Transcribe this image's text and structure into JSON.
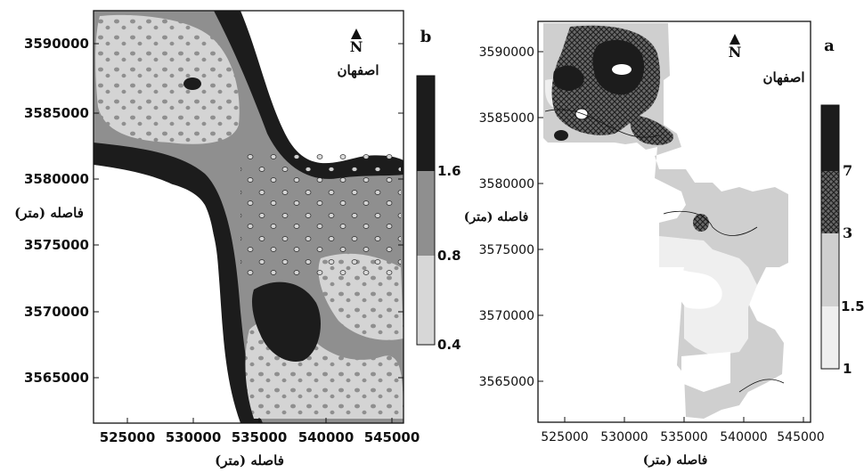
{
  "panel_b": {
    "letter": "b",
    "city": "اصفهان",
    "y_axis_label": "فاصله (متر)",
    "x_axis_label": "فاصله (متر)",
    "x_ticks": [
      "525000",
      "530000",
      "535000",
      "540000",
      "545000"
    ],
    "y_ticks": [
      "3590000",
      "3585000",
      "3580000",
      "3575000",
      "3570000",
      "3565000"
    ],
    "legend_labels": [
      "1.6",
      "0.8",
      "0.4"
    ],
    "legend_colors": [
      "#1c1c1c",
      "#8f8f8f",
      "#d7d7d7"
    ]
  },
  "panel_a": {
    "letter": "a",
    "city": "اصفهان",
    "y_axis_label": "فاصله (متر)",
    "x_axis_label": "فاصله (متر)",
    "x_ticks": [
      "525000",
      "530000",
      "535000",
      "540000",
      "545000"
    ],
    "y_ticks": [
      "3590000",
      "3585000",
      "3580000",
      "3575000",
      "3570000",
      "3565000"
    ],
    "legend_labels": [
      "7",
      "3",
      "1.5",
      "1"
    ],
    "legend_colors": [
      "#1c1c1c",
      "crosshatch",
      "#cfcfcf",
      "#efefef"
    ]
  },
  "north_arrow": "N"
}
